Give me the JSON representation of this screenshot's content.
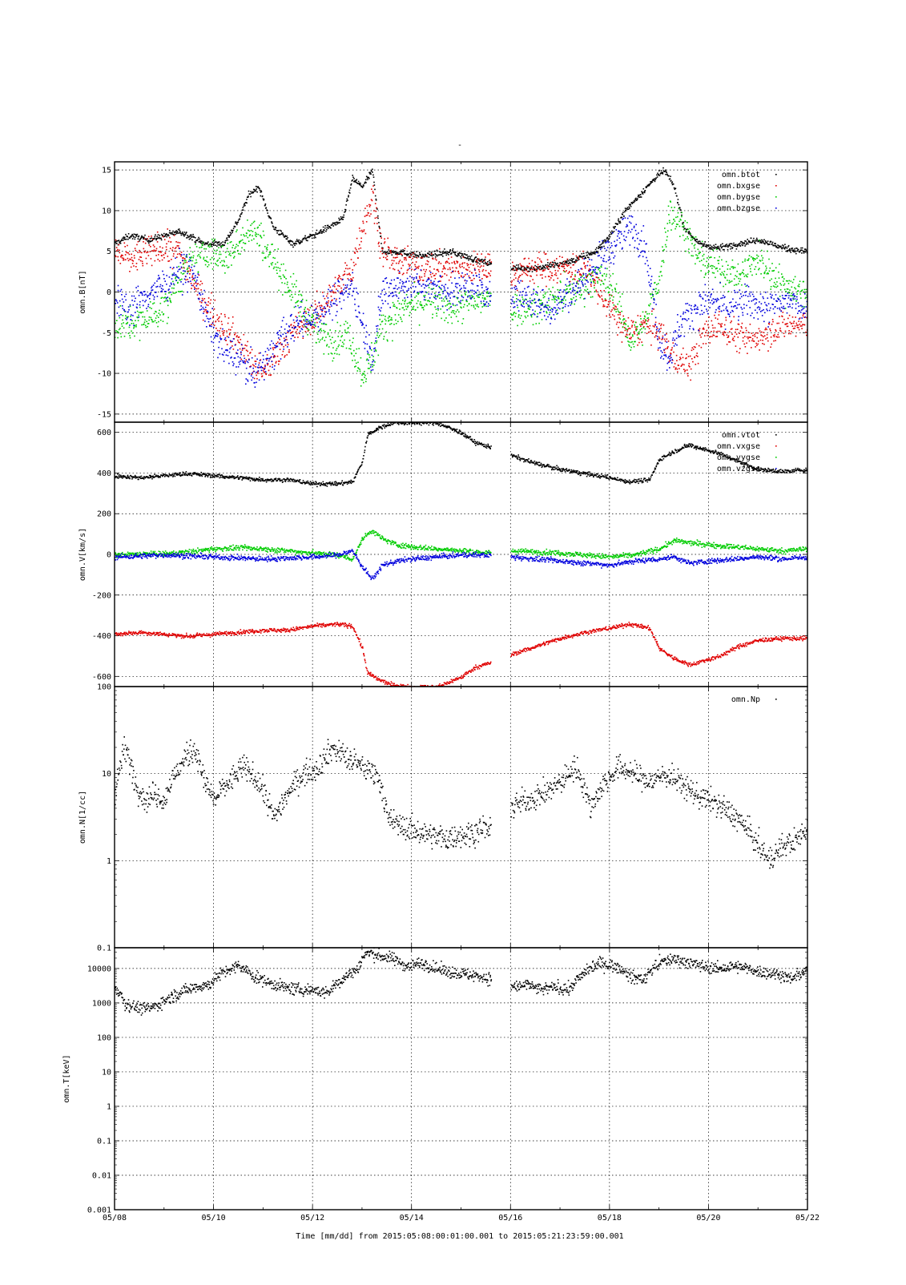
{
  "figure": {
    "title": "-",
    "x_axis_label": "Time [mm/dd]  from 2015:05:08:00:01:00.001  to  2015:05:21:23:59:00.001",
    "x_tick_labels": [
      "05/08",
      "05/10",
      "05/12",
      "05/14",
      "05/16",
      "05/18",
      "05/20",
      "05/22"
    ]
  },
  "colors": {
    "black": "#000000",
    "red": "#e00000",
    "green": "#00cc00",
    "blue": "#0000dd",
    "grid": "#000000"
  },
  "chart_data": [
    {
      "type": "scatter",
      "ylabel": "omn.B[nT]",
      "yscale": "linear",
      "ylim": [
        -16,
        16
      ],
      "xlim": [
        8,
        22
      ],
      "x_unit": "day of May 2015",
      "yticks": [
        15,
        10,
        5,
        0,
        -5,
        -10,
        -15
      ],
      "ytick_labels": [
        "15",
        "10",
        "5",
        "0",
        "-5",
        "-10",
        "-15"
      ],
      "legend_position": "top-right",
      "grid": true,
      "data_gap": [
        15.6,
        16.0
      ],
      "series": [
        {
          "name": "omn.btot",
          "color": "black",
          "spread": 0.3,
          "x": [
            8.0,
            8.3,
            8.7,
            9.0,
            9.3,
            9.5,
            9.8,
            10.2,
            10.5,
            10.7,
            10.9,
            11.2,
            11.6,
            12.0,
            12.3,
            12.6,
            12.8,
            13.0,
            13.2,
            13.4,
            13.7,
            14.2,
            14.8,
            15.3,
            15.6,
            16.0,
            16.5,
            17.0,
            17.3,
            17.7,
            18.0,
            18.3,
            18.6,
            18.9,
            19.1,
            19.3,
            19.5,
            19.8,
            20.2,
            20.6,
            21.0,
            21.5,
            22.0
          ],
          "y": [
            6,
            7,
            6.5,
            7,
            7.5,
            7,
            6,
            6,
            9,
            12,
            13,
            8,
            6,
            7,
            8,
            9,
            14,
            13,
            15,
            5,
            5,
            4.5,
            5,
            4,
            3.5,
            3,
            3,
            3.5,
            4,
            5,
            7,
            10,
            12,
            14,
            15,
            13,
            8,
            6,
            5.5,
            6,
            6.5,
            5.5,
            5
          ]
        },
        {
          "name": "omn.bxgse",
          "color": "red",
          "spread": 1.5,
          "x": [
            8.0,
            8.3,
            8.7,
            9.0,
            9.3,
            9.6,
            9.9,
            10.2,
            10.5,
            10.8,
            11.0,
            11.3,
            11.6,
            12.0,
            12.4,
            12.8,
            13.0,
            13.2,
            13.4,
            13.8,
            14.3,
            14.8,
            15.3,
            15.6,
            16.0,
            16.4,
            16.8,
            17.2,
            17.5,
            17.8,
            18.1,
            18.4,
            18.7,
            19.0,
            19.3,
            19.6,
            19.9,
            20.2,
            20.5,
            20.8,
            21.1,
            21.5,
            22.0
          ],
          "y": [
            5,
            4,
            5,
            5.5,
            5,
            1,
            -2,
            -4,
            -6,
            -9,
            -10,
            -7,
            -5,
            -3,
            0,
            3,
            8,
            12,
            5,
            3.5,
            3,
            3,
            3,
            3,
            2,
            3,
            3,
            3,
            3,
            0,
            -3,
            -5,
            -4,
            -5,
            -8,
            -9,
            -5,
            -4,
            -5,
            -6,
            -5,
            -4,
            -4
          ]
        },
        {
          "name": "omn.bygse",
          "color": "green",
          "spread": 1.6,
          "x": [
            8.0,
            8.3,
            8.7,
            9.0,
            9.3,
            9.6,
            9.9,
            10.2,
            10.5,
            10.7,
            10.9,
            11.2,
            11.5,
            11.8,
            12.1,
            12.4,
            12.7,
            13.0,
            13.2,
            13.4,
            13.8,
            14.3,
            14.8,
            15.3,
            15.6,
            16.0,
            16.4,
            16.8,
            17.2,
            17.5,
            17.8,
            18.1,
            18.4,
            18.7,
            19.0,
            19.2,
            19.5,
            19.8,
            20.2,
            20.6,
            21.0,
            21.5,
            22.0
          ],
          "y": [
            -4,
            -4,
            -3,
            -2,
            2,
            4,
            5,
            4,
            6,
            8,
            7,
            4,
            1,
            -2,
            -5,
            -6,
            -5,
            -10,
            -8,
            -4,
            -2,
            -1,
            -2,
            -1,
            -1,
            -2,
            -2,
            -1,
            0,
            1,
            2,
            0,
            -6,
            -4,
            2,
            10,
            8,
            4,
            3,
            2,
            4,
            1,
            0
          ]
        },
        {
          "name": "omn.bzgse",
          "color": "blue",
          "spread": 1.6,
          "x": [
            8.0,
            8.3,
            8.7,
            9.0,
            9.3,
            9.6,
            9.9,
            10.2,
            10.5,
            10.8,
            11.0,
            11.3,
            11.6,
            12.0,
            12.4,
            12.8,
            13.0,
            13.2,
            13.4,
            13.8,
            14.3,
            14.8,
            15.3,
            15.6,
            16.0,
            16.4,
            16.8,
            17.2,
            17.5,
            17.8,
            18.1,
            18.4,
            18.7,
            19.0,
            19.2,
            19.4,
            19.7,
            20.0,
            20.4,
            20.8,
            21.2,
            21.6,
            22.0
          ],
          "y": [
            -1,
            -2,
            0,
            1,
            3,
            2,
            -4,
            -7,
            -8,
            -10,
            -9,
            -6,
            -4,
            -3,
            -1,
            1,
            -4,
            -8,
            0,
            1,
            1,
            0,
            1,
            -1,
            0,
            -1,
            -2,
            0,
            2,
            4,
            6,
            8,
            6,
            -6,
            -8,
            -4,
            -2,
            -1,
            -2,
            -1,
            -2,
            -1,
            -2
          ]
        }
      ]
    },
    {
      "type": "scatter",
      "ylabel": "omn.V[km/s]",
      "yscale": "linear",
      "ylim": [
        -650,
        650
      ],
      "xlim": [
        8,
        22
      ],
      "x_unit": "day of May 2015",
      "yticks": [
        600,
        400,
        200,
        0,
        -200,
        -400,
        -600
      ],
      "ytick_labels": [
        "600",
        "400",
        "200",
        "0",
        "-200",
        "-400",
        "-600"
      ],
      "legend_position": "top-right",
      "grid": true,
      "data_gap": [
        15.6,
        16.0
      ],
      "series": [
        {
          "name": "omn.vtot",
          "color": "black",
          "spread": 8,
          "x": [
            8.0,
            8.5,
            9.0,
            9.5,
            10.0,
            10.5,
            11.0,
            11.5,
            12.0,
            12.5,
            12.8,
            13.0,
            13.1,
            13.3,
            13.6,
            14.0,
            14.5,
            15.0,
            15.3,
            15.6,
            16.0,
            16.5,
            17.0,
            17.5,
            18.0,
            18.4,
            18.8,
            19.0,
            19.3,
            19.6,
            19.9,
            20.2,
            20.6,
            21.0,
            21.5,
            22.0
          ],
          "y": [
            390,
            380,
            390,
            400,
            390,
            380,
            370,
            370,
            350,
            350,
            360,
            460,
            590,
            620,
            650,
            650,
            650,
            600,
            550,
            530,
            490,
            450,
            420,
            400,
            380,
            360,
            370,
            470,
            510,
            540,
            520,
            500,
            460,
            420,
            410,
            420
          ]
        },
        {
          "name": "omn.vxgse",
          "color": "red",
          "spread": 8,
          "x": [
            8.0,
            8.5,
            9.0,
            9.5,
            10.0,
            10.5,
            11.0,
            11.5,
            12.0,
            12.5,
            12.8,
            13.0,
            13.1,
            13.3,
            13.6,
            14.0,
            14.5,
            15.0,
            15.3,
            15.6,
            16.0,
            16.5,
            17.0,
            17.5,
            18.0,
            18.4,
            18.8,
            19.0,
            19.3,
            19.6,
            19.9,
            20.2,
            20.6,
            21.0,
            21.5,
            22.0
          ],
          "y": [
            -390,
            -380,
            -390,
            -400,
            -390,
            -380,
            -370,
            -370,
            -350,
            -340,
            -350,
            -460,
            -580,
            -610,
            -640,
            -650,
            -650,
            -600,
            -550,
            -530,
            -490,
            -450,
            -410,
            -380,
            -360,
            -340,
            -360,
            -460,
            -510,
            -540,
            -520,
            -500,
            -450,
            -420,
            -410,
            -410
          ]
        },
        {
          "name": "omn.vygse",
          "color": "green",
          "spread": 10,
          "x": [
            8.0,
            8.5,
            9.0,
            9.5,
            10.0,
            10.5,
            11.0,
            11.5,
            12.0,
            12.5,
            12.8,
            13.0,
            13.2,
            13.4,
            13.7,
            14.0,
            14.5,
            15.0,
            15.6,
            16.0,
            16.5,
            17.0,
            17.5,
            18.0,
            18.5,
            19.0,
            19.3,
            19.6,
            20.0,
            20.5,
            21.0,
            21.5,
            22.0
          ],
          "y": [
            0,
            5,
            5,
            15,
            30,
            35,
            30,
            20,
            10,
            0,
            -20,
            80,
            120,
            80,
            50,
            40,
            30,
            20,
            10,
            20,
            15,
            10,
            0,
            -10,
            0,
            30,
            70,
            60,
            50,
            40,
            30,
            20,
            30
          ]
        },
        {
          "name": "omn.vzgse",
          "color": "blue",
          "spread": 10,
          "x": [
            8.0,
            8.5,
            9.0,
            9.5,
            10.0,
            10.5,
            11.0,
            11.5,
            12.0,
            12.5,
            12.8,
            13.0,
            13.2,
            13.4,
            13.7,
            14.0,
            14.5,
            15.0,
            15.6,
            16.0,
            16.5,
            17.0,
            17.5,
            18.0,
            18.5,
            19.0,
            19.3,
            19.6,
            20.0,
            20.5,
            21.0,
            21.5,
            22.0
          ],
          "y": [
            -10,
            -5,
            0,
            -5,
            -10,
            -15,
            -20,
            -15,
            -10,
            0,
            20,
            -60,
            -120,
            -50,
            -30,
            -20,
            -10,
            0,
            0,
            -10,
            -20,
            -30,
            -40,
            -50,
            -30,
            -20,
            -10,
            -40,
            -30,
            -20,
            -10,
            -20,
            -10
          ]
        }
      ]
    },
    {
      "type": "scatter",
      "ylabel": "omn.N[1/cc]",
      "yscale": "log",
      "ylim": [
        0.1,
        100
      ],
      "xlim": [
        8,
        22
      ],
      "x_unit": "day of May 2015",
      "yticks": [
        100,
        10,
        1,
        0.1
      ],
      "ytick_labels": [
        "100",
        "10",
        "1",
        "0.1"
      ],
      "legend_position": "top-right",
      "grid": true,
      "data_gap": [
        15.6,
        16.0
      ],
      "series": [
        {
          "name": "omn.Np",
          "color": "black",
          "spread": 0.12,
          "x": [
            8.0,
            8.2,
            8.4,
            8.6,
            8.8,
            9.0,
            9.3,
            9.6,
            9.8,
            10.0,
            10.3,
            10.6,
            10.9,
            11.2,
            11.5,
            11.8,
            12.1,
            12.4,
            12.7,
            13.0,
            13.3,
            13.5,
            13.8,
            14.1,
            14.4,
            14.7,
            15.0,
            15.3,
            15.6,
            16.0,
            16.3,
            16.7,
            17.0,
            17.3,
            17.6,
            17.9,
            18.2,
            18.5,
            18.8,
            19.1,
            19.4,
            19.7,
            20.0,
            20.3,
            20.6,
            20.9,
            21.2,
            21.5,
            21.8,
            22.0
          ],
          "y": [
            5,
            20,
            8,
            5,
            6,
            5,
            12,
            20,
            8,
            5,
            8,
            12,
            8,
            3,
            6,
            10,
            12,
            20,
            15,
            12,
            10,
            3,
            2.5,
            2.2,
            2.0,
            1.8,
            2.0,
            2.2,
            2.5,
            4,
            5,
            6,
            8,
            12,
            4,
            8,
            12,
            10,
            8,
            10,
            8,
            6,
            5,
            4,
            3,
            1.8,
            1.0,
            1.5,
            1.8,
            2.5
          ]
        }
      ]
    },
    {
      "type": "scatter",
      "ylabel": "omn.T[keV]",
      "yscale": "log",
      "ylim": [
        0.001,
        40000
      ],
      "xlim": [
        8,
        22
      ],
      "x_unit": "day of May 2015",
      "yticks": [
        10000,
        1000,
        100,
        10,
        1,
        0.1,
        0.01,
        0.001
      ],
      "ytick_labels": [
        "10000",
        "1000",
        "100",
        "10",
        "1",
        "0.1",
        "0.01",
        "0.001"
      ],
      "legend_position": "top-right",
      "grid": true,
      "data_gap": [
        15.6,
        16.0
      ],
      "series": [
        {
          "name": "",
          "color": "black",
          "spread": 0.15,
          "x": [
            8.0,
            8.2,
            8.4,
            8.6,
            8.8,
            9.0,
            9.3,
            9.6,
            9.9,
            10.2,
            10.5,
            10.8,
            11.1,
            11.4,
            11.7,
            12.0,
            12.3,
            12.6,
            12.9,
            13.1,
            13.3,
            13.6,
            13.9,
            14.2,
            14.5,
            14.8,
            15.1,
            15.4,
            15.6,
            16.0,
            16.3,
            16.6,
            16.9,
            17.2,
            17.5,
            17.8,
            18.1,
            18.4,
            18.7,
            19.0,
            19.3,
            19.6,
            19.9,
            20.2,
            20.5,
            20.8,
            21.1,
            21.4,
            21.7,
            22.0
          ],
          "y": [
            3000,
            1000,
            800,
            700,
            800,
            1200,
            2000,
            3000,
            3500,
            8000,
            12000,
            6000,
            4000,
            3000,
            2500,
            2500,
            2000,
            5000,
            10000,
            30000,
            25000,
            20000,
            12000,
            15000,
            10000,
            8000,
            7000,
            6000,
            5000,
            3000,
            3500,
            2500,
            3000,
            2500,
            8000,
            15000,
            12000,
            6000,
            5000,
            15000,
            20000,
            15000,
            12000,
            10000,
            12000,
            10000,
            8000,
            7000,
            5000,
            10000
          ]
        }
      ]
    }
  ]
}
